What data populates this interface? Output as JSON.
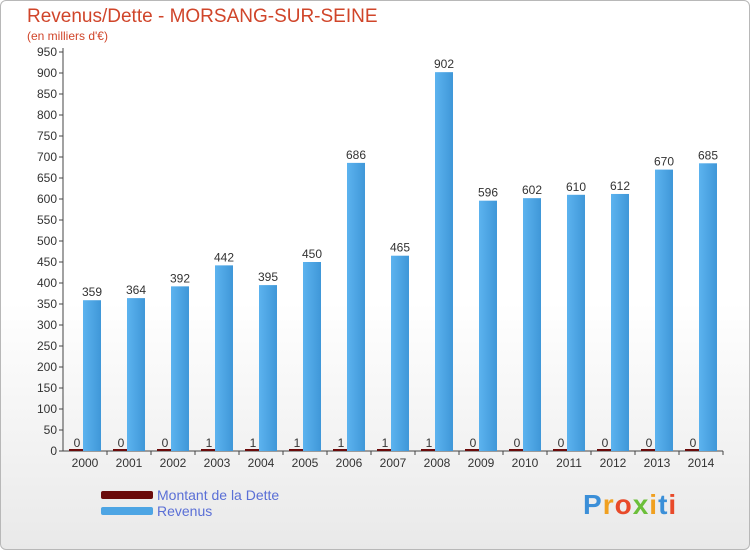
{
  "title": "Revenus/Dette - MORSANG-SUR-SEINE",
  "subtitle": "(en milliers d'€)",
  "legend": {
    "debt_label": "Montant de la Dette",
    "revenue_label": "Revenus"
  },
  "logo_text": "Proxiti",
  "colors": {
    "debt": "#6b0b0b",
    "revenue": "#4da5e4",
    "title": "#d0452a",
    "legend_text": "#5a6fd6"
  },
  "chart_data": {
    "type": "bar",
    "title": "Revenus/Dette - MORSANG-SUR-SEINE",
    "ylabel": "(en milliers d'€)",
    "xlabel": "",
    "ylim": [
      0,
      950
    ],
    "ytick_step": 50,
    "grid": false,
    "legend_position": "bottom-left",
    "categories": [
      "2000",
      "2001",
      "2002",
      "2003",
      "2004",
      "2005",
      "2006",
      "2007",
      "2008",
      "2009",
      "2010",
      "2011",
      "2012",
      "2013",
      "2014"
    ],
    "series": [
      {
        "name": "Montant de la Dette",
        "values": [
          0,
          0,
          0,
          1,
          1,
          1,
          1,
          1,
          1,
          0,
          0,
          0,
          0,
          0,
          0
        ]
      },
      {
        "name": "Revenus",
        "values": [
          359,
          364,
          392,
          442,
          395,
          450,
          686,
          465,
          902,
          596,
          602,
          610,
          612,
          670,
          685
        ]
      }
    ]
  }
}
